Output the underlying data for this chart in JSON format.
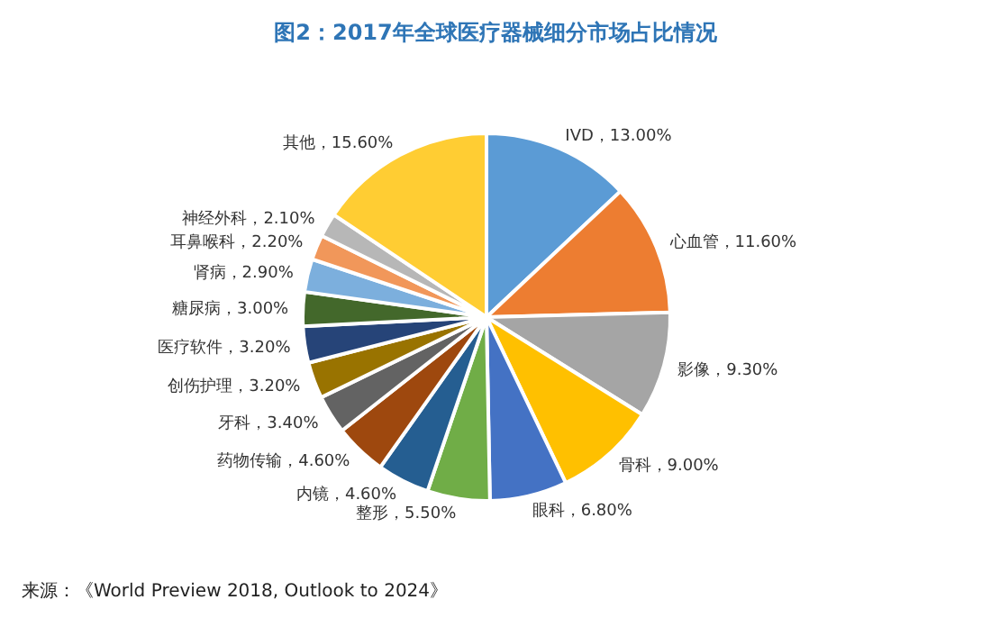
{
  "chart_data": {
    "type": "pie",
    "title": "图2：2017年全球医疗器械细分市场占比情况",
    "categories": [
      "IVD",
      "心血管",
      "影像",
      "骨科",
      "眼科",
      "整形",
      "内镜",
      "药物传输",
      "牙科",
      "创伤护理",
      "医疗软件",
      "糖尿病",
      "肾病",
      "耳鼻喉科",
      "神经外科",
      "其他"
    ],
    "values": [
      13.0,
      11.6,
      9.3,
      9.0,
      6.8,
      5.5,
      4.6,
      4.6,
      3.4,
      3.2,
      3.2,
      3.0,
      2.9,
      2.2,
      2.1,
      15.6
    ],
    "value_labels": [
      "13.00%",
      "11.60%",
      "9.30%",
      "9.00%",
      "6.80%",
      "5.50%",
      "4.60%",
      "4.60%",
      "3.40%",
      "3.20%",
      "3.20%",
      "3.00%",
      "2.90%",
      "2.20%",
      "2.10%",
      "15.60%"
    ],
    "colors": [
      "#5b9bd5",
      "#ed7d31",
      "#a5a5a5",
      "#ffc000",
      "#4472c4",
      "#70ad47",
      "#255e91",
      "#9e480e",
      "#636363",
      "#997300",
      "#264478",
      "#43682b",
      "#7cafdd",
      "#f1975a",
      "#b7b7b7",
      "#ffcd33"
    ],
    "annotations": [
      "来源：《World Preview 2018, Outlook to 2024》"
    ]
  }
}
